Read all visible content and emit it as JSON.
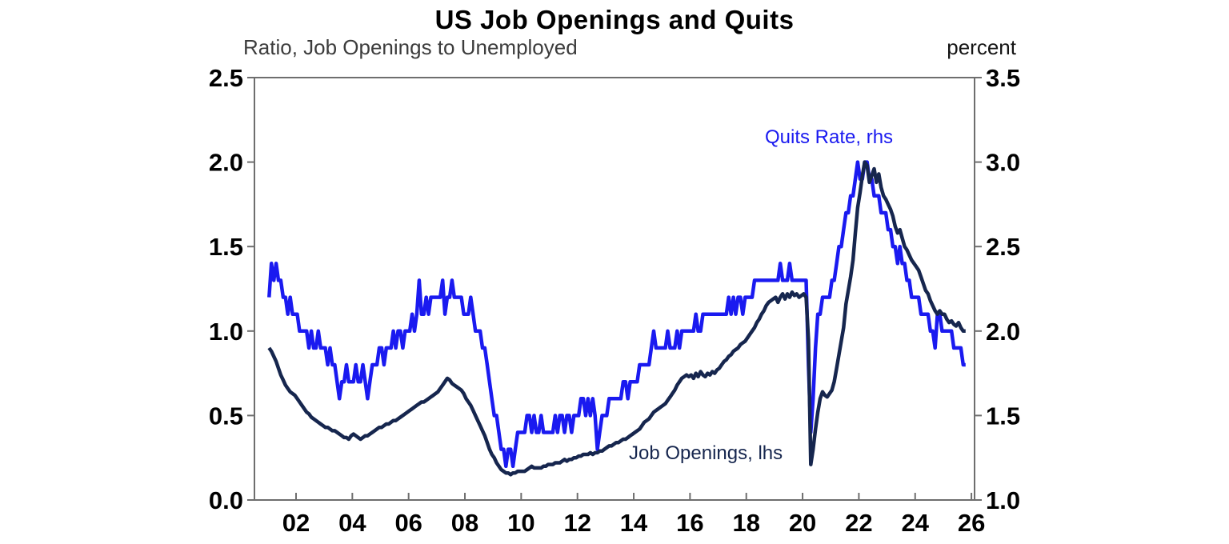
{
  "header": {
    "title": "US Job Openings and Quits",
    "left_axis_label": "Ratio, Job Openings to Unemployed",
    "right_axis_label": "percent"
  },
  "annotations": {
    "quits": "Quits Rate, rhs",
    "openings": "Job Openings, lhs"
  },
  "colors": {
    "quits_line": "#1a1af0",
    "openings_line": "#16264e",
    "axis_frame": "#6e6e6e",
    "tick_label": "#000000",
    "subtitle": "#3c3c3c"
  },
  "chart_data": {
    "type": "line",
    "title": "US Job Openings and Quits",
    "frequency": "monthly",
    "start_year": 2001,
    "start_month": 1,
    "grid": false,
    "legend_position": "inline-annotations",
    "x_axis": {
      "tick_labels": [
        "02",
        "04",
        "06",
        "08",
        "10",
        "12",
        "14",
        "16",
        "18",
        "20",
        "22",
        "24",
        "26"
      ],
      "tick_years": [
        2002,
        2004,
        2006,
        2008,
        2010,
        2012,
        2014,
        2016,
        2018,
        2020,
        2022,
        2024,
        2026
      ],
      "range": [
        2000.5,
        2026.3
      ]
    },
    "left_axis": {
      "label": "Ratio, Job Openings to Unemployed",
      "tick_labels": [
        "0.0",
        "0.5",
        "1.0",
        "1.5",
        "2.0",
        "2.5"
      ],
      "tick_values": [
        0.0,
        0.5,
        1.0,
        1.5,
        2.0,
        2.5
      ],
      "range": [
        0.0,
        2.5
      ]
    },
    "right_axis": {
      "label": "percent",
      "tick_labels": [
        "1.0",
        "1.5",
        "2.0",
        "2.5",
        "3.0",
        "3.5"
      ],
      "tick_values": [
        1.0,
        1.5,
        2.0,
        2.5,
        3.0,
        3.5
      ],
      "range": [
        1.0,
        3.5
      ]
    },
    "series": [
      {
        "name": "Quits Rate, rhs",
        "axis": "right",
        "color": "#1a1af0",
        "values": [
          2.2,
          2.4,
          2.3,
          2.4,
          2.3,
          2.3,
          2.2,
          2.2,
          2.1,
          2.2,
          2.1,
          2.1,
          2.1,
          2.0,
          2.0,
          2.0,
          2.0,
          1.9,
          2.0,
          1.9,
          1.9,
          2.0,
          1.9,
          1.9,
          1.9,
          1.8,
          1.9,
          1.8,
          1.8,
          1.7,
          1.6,
          1.7,
          1.7,
          1.8,
          1.7,
          1.7,
          1.7,
          1.8,
          1.7,
          1.7,
          1.8,
          1.7,
          1.6,
          1.7,
          1.8,
          1.8,
          1.8,
          1.9,
          1.9,
          1.8,
          1.9,
          1.9,
          1.9,
          2.0,
          1.9,
          2.0,
          2.0,
          1.9,
          2.0,
          2.0,
          2.0,
          2.1,
          2.0,
          2.1,
          2.3,
          2.1,
          2.1,
          2.2,
          2.1,
          2.2,
          2.2,
          2.2,
          2.2,
          2.2,
          2.3,
          2.1,
          2.2,
          2.2,
          2.3,
          2.2,
          2.2,
          2.2,
          2.2,
          2.1,
          2.1,
          2.1,
          2.2,
          2.1,
          2.0,
          2.0,
          2.0,
          1.9,
          1.9,
          1.8,
          1.7,
          1.6,
          1.5,
          1.5,
          1.4,
          1.3,
          1.3,
          1.2,
          1.3,
          1.3,
          1.2,
          1.3,
          1.4,
          1.4,
          1.4,
          1.4,
          1.5,
          1.5,
          1.4,
          1.5,
          1.4,
          1.4,
          1.5,
          1.4,
          1.4,
          1.4,
          1.4,
          1.4,
          1.5,
          1.4,
          1.5,
          1.5,
          1.4,
          1.5,
          1.5,
          1.4,
          1.5,
          1.5,
          1.5,
          1.6,
          1.6,
          1.5,
          1.6,
          1.5,
          1.6,
          1.5,
          1.3,
          1.4,
          1.5,
          1.5,
          1.5,
          1.6,
          1.6,
          1.6,
          1.6,
          1.6,
          1.6,
          1.7,
          1.7,
          1.6,
          1.7,
          1.7,
          1.7,
          1.7,
          1.8,
          1.8,
          1.8,
          1.8,
          1.8,
          1.9,
          2.0,
          1.9,
          1.9,
          1.9,
          1.9,
          1.9,
          2.0,
          1.9,
          1.9,
          1.9,
          2.0,
          1.9,
          2.0,
          2.0,
          2.0,
          2.0,
          2.0,
          2.0,
          2.1,
          2.0,
          2.0,
          2.1,
          2.1,
          2.1,
          2.1,
          2.1,
          2.1,
          2.1,
          2.1,
          2.1,
          2.1,
          2.1,
          2.2,
          2.1,
          2.2,
          2.1,
          2.2,
          2.2,
          2.1,
          2.2,
          2.2,
          2.2,
          2.2,
          2.3,
          2.3,
          2.3,
          2.3,
          2.3,
          2.3,
          2.3,
          2.3,
          2.3,
          2.3,
          2.3,
          2.4,
          2.3,
          2.3,
          2.3,
          2.4,
          2.3,
          2.3,
          2.3,
          2.3,
          2.3,
          2.3,
          2.3,
          1.8,
          1.4,
          1.6,
          1.9,
          2.1,
          2.1,
          2.2,
          2.2,
          2.2,
          2.2,
          2.3,
          2.3,
          2.4,
          2.5,
          2.5,
          2.6,
          2.7,
          2.7,
          2.8,
          2.8,
          2.9,
          3.0,
          2.9,
          2.9,
          3.0,
          3.0,
          2.9,
          2.9,
          2.8,
          2.8,
          2.8,
          2.7,
          2.7,
          2.7,
          2.6,
          2.6,
          2.5,
          2.5,
          2.4,
          2.5,
          2.4,
          2.4,
          2.3,
          2.3,
          2.2,
          2.2,
          2.2,
          2.2,
          2.1,
          2.1,
          2.1,
          2.1,
          2.0,
          2.0,
          1.9,
          2.1,
          2.1,
          2.0,
          2.0,
          2.0,
          2.0,
          2.0,
          1.9,
          1.9,
          1.9,
          1.9,
          1.8,
          1.8
        ]
      },
      {
        "name": "Job Openings, lhs",
        "axis": "left",
        "color": "#16264e",
        "values": [
          0.9,
          0.88,
          0.85,
          0.82,
          0.78,
          0.74,
          0.71,
          0.68,
          0.66,
          0.64,
          0.63,
          0.62,
          0.6,
          0.58,
          0.56,
          0.54,
          0.52,
          0.51,
          0.49,
          0.48,
          0.47,
          0.46,
          0.45,
          0.44,
          0.43,
          0.43,
          0.42,
          0.41,
          0.41,
          0.4,
          0.39,
          0.38,
          0.37,
          0.37,
          0.36,
          0.38,
          0.39,
          0.38,
          0.37,
          0.36,
          0.37,
          0.38,
          0.38,
          0.39,
          0.4,
          0.41,
          0.42,
          0.43,
          0.43,
          0.44,
          0.45,
          0.45,
          0.46,
          0.47,
          0.47,
          0.48,
          0.49,
          0.5,
          0.51,
          0.52,
          0.53,
          0.54,
          0.55,
          0.56,
          0.57,
          0.58,
          0.58,
          0.59,
          0.6,
          0.61,
          0.62,
          0.63,
          0.64,
          0.66,
          0.68,
          0.7,
          0.72,
          0.71,
          0.69,
          0.68,
          0.67,
          0.66,
          0.65,
          0.63,
          0.6,
          0.58,
          0.56,
          0.53,
          0.5,
          0.47,
          0.44,
          0.41,
          0.38,
          0.34,
          0.3,
          0.27,
          0.25,
          0.22,
          0.2,
          0.18,
          0.17,
          0.16,
          0.16,
          0.15,
          0.16,
          0.16,
          0.17,
          0.17,
          0.17,
          0.17,
          0.18,
          0.19,
          0.2,
          0.19,
          0.19,
          0.19,
          0.19,
          0.2,
          0.2,
          0.21,
          0.21,
          0.21,
          0.22,
          0.22,
          0.22,
          0.23,
          0.24,
          0.23,
          0.24,
          0.24,
          0.25,
          0.25,
          0.26,
          0.26,
          0.27,
          0.27,
          0.27,
          0.28,
          0.27,
          0.28,
          0.28,
          0.29,
          0.29,
          0.3,
          0.31,
          0.32,
          0.32,
          0.33,
          0.34,
          0.34,
          0.35,
          0.36,
          0.36,
          0.37,
          0.38,
          0.39,
          0.4,
          0.41,
          0.42,
          0.44,
          0.46,
          0.47,
          0.48,
          0.5,
          0.52,
          0.53,
          0.54,
          0.55,
          0.56,
          0.57,
          0.59,
          0.61,
          0.63,
          0.65,
          0.68,
          0.7,
          0.72,
          0.73,
          0.74,
          0.73,
          0.74,
          0.72,
          0.75,
          0.73,
          0.76,
          0.74,
          0.73,
          0.75,
          0.74,
          0.76,
          0.75,
          0.77,
          0.78,
          0.8,
          0.82,
          0.83,
          0.85,
          0.86,
          0.88,
          0.89,
          0.9,
          0.92,
          0.93,
          0.94,
          0.96,
          0.98,
          1.0,
          1.02,
          1.05,
          1.07,
          1.1,
          1.12,
          1.15,
          1.17,
          1.18,
          1.19,
          1.2,
          1.17,
          1.2,
          1.22,
          1.19,
          1.22,
          1.2,
          1.23,
          1.21,
          1.22,
          1.2,
          1.21,
          1.22,
          1.2,
          0.95,
          0.21,
          0.3,
          0.42,
          0.52,
          0.6,
          0.64,
          0.62,
          0.61,
          0.63,
          0.65,
          0.7,
          0.78,
          0.86,
          0.94,
          1.02,
          1.16,
          1.24,
          1.32,
          1.42,
          1.58,
          1.73,
          1.82,
          1.92,
          2.0,
          1.98,
          1.88,
          1.92,
          1.96,
          1.88,
          1.93,
          1.85,
          1.8,
          1.78,
          1.75,
          1.72,
          1.68,
          1.62,
          1.58,
          1.6,
          1.55,
          1.5,
          1.48,
          1.45,
          1.42,
          1.4,
          1.38,
          1.36,
          1.32,
          1.28,
          1.24,
          1.22,
          1.18,
          1.15,
          1.12,
          1.1,
          1.12,
          1.1,
          1.1,
          1.07,
          1.05,
          1.06,
          1.04,
          1.03,
          1.05,
          1.02,
          1.0,
          1.0
        ]
      }
    ]
  }
}
